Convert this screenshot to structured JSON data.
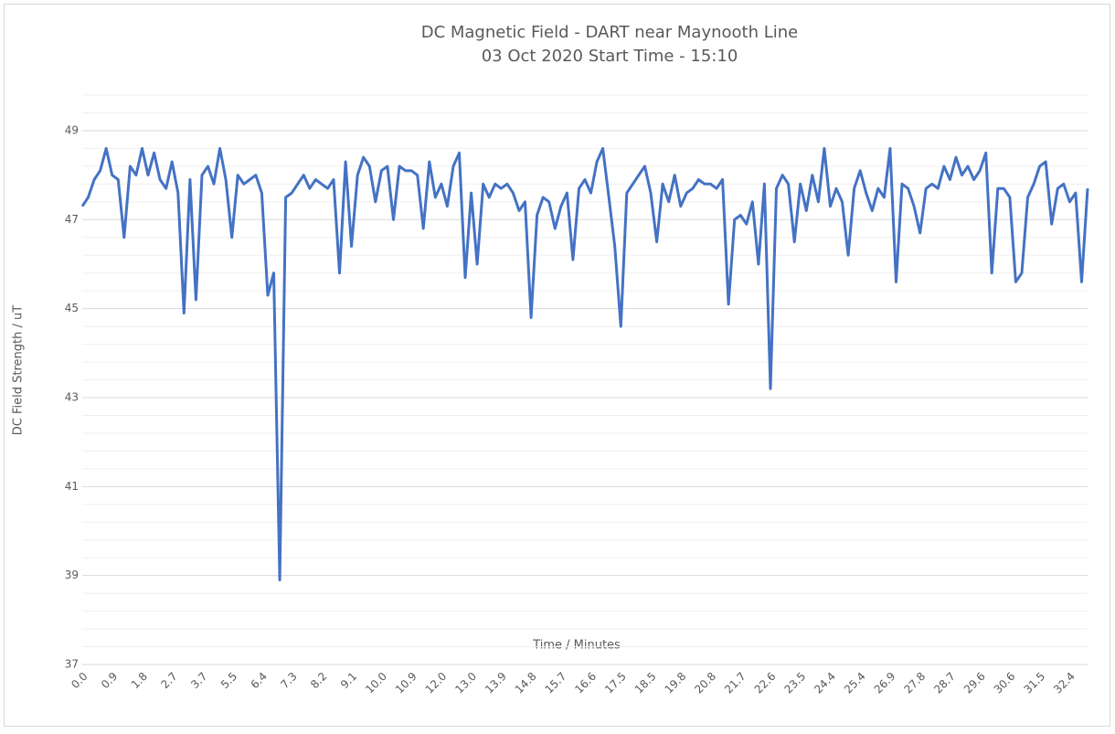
{
  "chart_data": {
    "type": "line",
    "title": "DC Magnetic Field - DART near Maynooth Line",
    "subtitle": "03 Oct 2020 Start Time - 15:10",
    "y_label": "DC Field Strength / uT",
    "x_label": "Time / Minutes",
    "categories": [
      "0.0",
      null,
      null,
      null,
      null,
      "0.9",
      null,
      null,
      null,
      null,
      "1.8",
      null,
      null,
      null,
      null,
      "2.7",
      null,
      null,
      null,
      null,
      "3.7",
      null,
      null,
      null,
      null,
      "5.5",
      null,
      null,
      null,
      null,
      "6.4",
      null,
      null,
      null,
      null,
      "7.3",
      null,
      null,
      null,
      null,
      "8.2",
      null,
      null,
      null,
      null,
      "9.1",
      null,
      null,
      null,
      null,
      "10.0",
      null,
      null,
      null,
      null,
      "10.9",
      null,
      null,
      null,
      null,
      "12.0",
      null,
      null,
      null,
      null,
      "13.0",
      null,
      null,
      null,
      null,
      "13.9",
      null,
      null,
      null,
      null,
      "14.8",
      null,
      null,
      null,
      null,
      "15.7",
      null,
      null,
      null,
      null,
      "16.6",
      null,
      null,
      null,
      null,
      "17.5",
      null,
      null,
      null,
      null,
      "18.5",
      null,
      null,
      null,
      null,
      "19.8",
      null,
      null,
      null,
      null,
      "20.8",
      null,
      null,
      null,
      null,
      "21.7",
      null,
      null,
      null,
      null,
      "22.6",
      null,
      null,
      null,
      null,
      "23.5",
      null,
      null,
      null,
      null,
      "24.4",
      null,
      null,
      null,
      null,
      "25.4",
      null,
      null,
      null,
      null,
      "26.9",
      null,
      null,
      null,
      null,
      "27.8",
      null,
      null,
      null,
      null,
      "28.7",
      null,
      null,
      null,
      null,
      "29.6",
      null,
      null,
      null,
      null,
      "30.6",
      null,
      null,
      null,
      null,
      "31.5",
      null,
      null,
      null,
      null,
      "32.4",
      null,
      null,
      null
    ],
    "series": [
      {
        "name": "DC Field Strength",
        "color": "#4472c4",
        "values": [
          47.3,
          47.5,
          47.9,
          48.1,
          48.6,
          48.0,
          47.9,
          46.6,
          48.2,
          48.0,
          48.6,
          48.0,
          48.5,
          47.9,
          47.7,
          48.3,
          47.6,
          44.9,
          47.9,
          45.2,
          48.0,
          48.2,
          47.8,
          48.6,
          47.9,
          46.6,
          48.0,
          47.8,
          47.9,
          48.0,
          47.6,
          45.3,
          45.8,
          38.9,
          47.5,
          47.6,
          47.8,
          48.0,
          47.7,
          47.9,
          47.8,
          47.7,
          47.9,
          45.8,
          48.3,
          46.4,
          48.0,
          48.4,
          48.2,
          47.4,
          48.1,
          48.2,
          47.0,
          48.2,
          48.1,
          48.1,
          48.0,
          46.8,
          48.3,
          47.5,
          47.8,
          47.3,
          48.2,
          48.5,
          45.7,
          47.6,
          46.0,
          47.8,
          47.5,
          47.8,
          47.7,
          47.8,
          47.6,
          47.2,
          47.4,
          44.8,
          47.1,
          47.5,
          47.4,
          46.8,
          47.3,
          47.6,
          46.1,
          47.7,
          47.9,
          47.6,
          48.3,
          48.6,
          47.5,
          46.4,
          44.6,
          47.6,
          47.8,
          48.0,
          48.2,
          47.6,
          46.5,
          47.8,
          47.4,
          48.0,
          47.3,
          47.6,
          47.7,
          47.9,
          47.8,
          47.8,
          47.7,
          47.9,
          45.1,
          47.0,
          47.1,
          46.9,
          47.4,
          46.0,
          47.8,
          43.2,
          47.7,
          48.0,
          47.8,
          46.5,
          47.8,
          47.2,
          48.0,
          47.4,
          48.6,
          47.3,
          47.7,
          47.4,
          46.2,
          47.7,
          48.1,
          47.6,
          47.2,
          47.7,
          47.5,
          48.6,
          45.6,
          47.8,
          47.7,
          47.3,
          46.7,
          47.7,
          47.8,
          47.7,
          48.2,
          47.9,
          48.4,
          48.0,
          48.2,
          47.9,
          48.1,
          48.5,
          45.8,
          47.7,
          47.7,
          47.5,
          45.6,
          45.8,
          47.5,
          47.8,
          48.2,
          48.3,
          46.9,
          47.7,
          47.8,
          47.4,
          47.6,
          45.6,
          47.7
        ]
      }
    ],
    "ylim": [
      37,
      49.8
    ],
    "yticks": [
      37,
      39,
      41,
      43,
      45,
      47,
      49
    ],
    "minor_yticks": [
      37.4,
      37.8,
      38.2,
      38.6,
      39.4,
      39.8,
      40.2,
      40.6,
      41.4,
      41.8,
      42.2,
      42.6,
      43.4,
      43.8,
      44.2,
      44.6,
      45.4,
      45.8,
      46.2,
      46.6,
      47.4,
      47.8,
      48.2,
      48.6,
      49.4,
      49.8
    ],
    "grid": true
  }
}
